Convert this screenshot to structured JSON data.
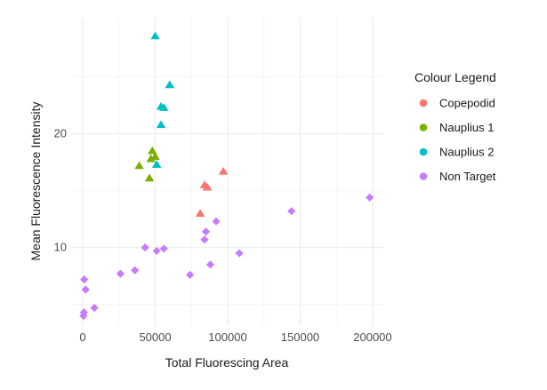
{
  "chart_data": {
    "type": "scatter",
    "title": "",
    "xlabel": "Total Fluorescing Area",
    "ylabel": "Mean Fluorescence Intensity",
    "xlim": [
      -8000,
      208000
    ],
    "ylim": [
      3.1,
      30.2
    ],
    "xticks": [
      0,
      50000,
      100000,
      150000,
      200000
    ],
    "xtick_labels": [
      "0",
      "50000",
      "100000",
      "150000",
      "200000"
    ],
    "yticks": [
      10,
      20
    ],
    "ytick_labels": [
      "10",
      "20"
    ],
    "grid": true,
    "legend": {
      "title": "Colour Legend",
      "position": "right",
      "entries": [
        {
          "name": "Copepodid",
          "color": "#F8766D"
        },
        {
          "name": "Nauplius 1",
          "color": "#7CAE00"
        },
        {
          "name": "Nauplius 2",
          "color": "#00BFC4"
        },
        {
          "name": "Non Target",
          "color": "#C77CFF"
        }
      ]
    },
    "series": [
      {
        "name": "Copepodid",
        "color": "#F8766D",
        "marker": "triangle",
        "points": [
          [
            81000,
            13.0
          ],
          [
            84000,
            15.5
          ],
          [
            86000,
            15.3
          ],
          [
            97000,
            16.7
          ]
        ]
      },
      {
        "name": "Nauplius 1",
        "color": "#7CAE00",
        "marker": "triangle",
        "points": [
          [
            39000,
            17.2
          ],
          [
            46000,
            16.1
          ],
          [
            47000,
            17.8
          ],
          [
            48000,
            18.5
          ],
          [
            50000,
            18.0
          ]
        ]
      },
      {
        "name": "Nauplius 2",
        "color": "#00BFC4",
        "marker": "triangle",
        "points": [
          [
            51000,
            17.3
          ],
          [
            50000,
            28.6
          ],
          [
            54000,
            20.8
          ],
          [
            54000,
            22.4
          ],
          [
            56000,
            22.3
          ],
          [
            60000,
            24.3
          ]
        ]
      },
      {
        "name": "Non Target",
        "color": "#C77CFF",
        "marker": "diamond",
        "points": [
          [
            500,
            4.0
          ],
          [
            800,
            4.3
          ],
          [
            1000,
            7.2
          ],
          [
            2000,
            6.3
          ],
          [
            8000,
            4.7
          ],
          [
            26000,
            7.7
          ],
          [
            36000,
            8.0
          ],
          [
            43000,
            10.0
          ],
          [
            51000,
            9.7
          ],
          [
            56000,
            9.9
          ],
          [
            74000,
            7.6
          ],
          [
            84000,
            10.7
          ],
          [
            85000,
            11.4
          ],
          [
            88000,
            8.5
          ],
          [
            92000,
            12.3
          ],
          [
            108000,
            9.5
          ],
          [
            144000,
            13.2
          ],
          [
            198000,
            14.4
          ]
        ]
      }
    ]
  }
}
